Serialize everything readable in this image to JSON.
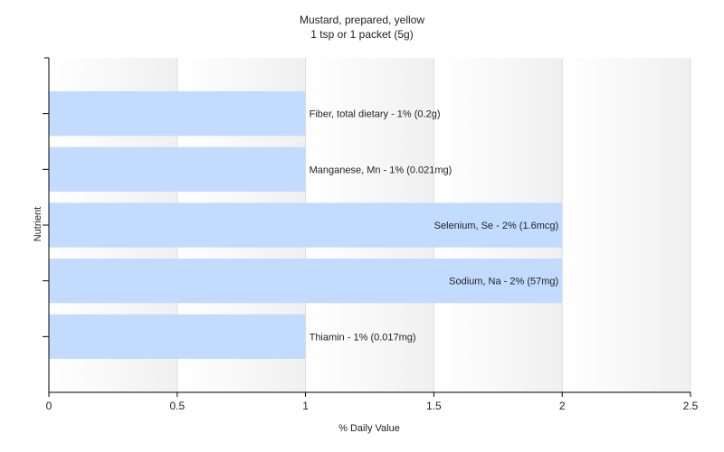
{
  "chart_data": {
    "type": "bar",
    "orientation": "horizontal",
    "title": "Mustard, prepared, yellow",
    "subtitle": "1 tsp or 1 packet (5g)",
    "xlabel": "% Daily Value",
    "ylabel": "Nutrient",
    "xlim": [
      0,
      2.5
    ],
    "xticks": [
      "0",
      "0.5",
      "1",
      "1.5",
      "2",
      "2.5"
    ],
    "grid": true,
    "bar_color": "#c2dbff",
    "categories": [
      "Fiber, total dietary",
      "Manganese, Mn",
      "Selenium, Se",
      "Sodium, Na",
      "Thiamin"
    ],
    "values": [
      1,
      1,
      2,
      2,
      1
    ],
    "data_labels": [
      "Fiber, total dietary - 1% (0.2g)",
      "Manganese, Mn - 1% (0.021mg)",
      "Selenium, Se - 2% (1.6mcg)",
      "Sodium, Na - 2% (57mg)",
      "Thiamin - 1% (0.017mg)"
    ]
  }
}
